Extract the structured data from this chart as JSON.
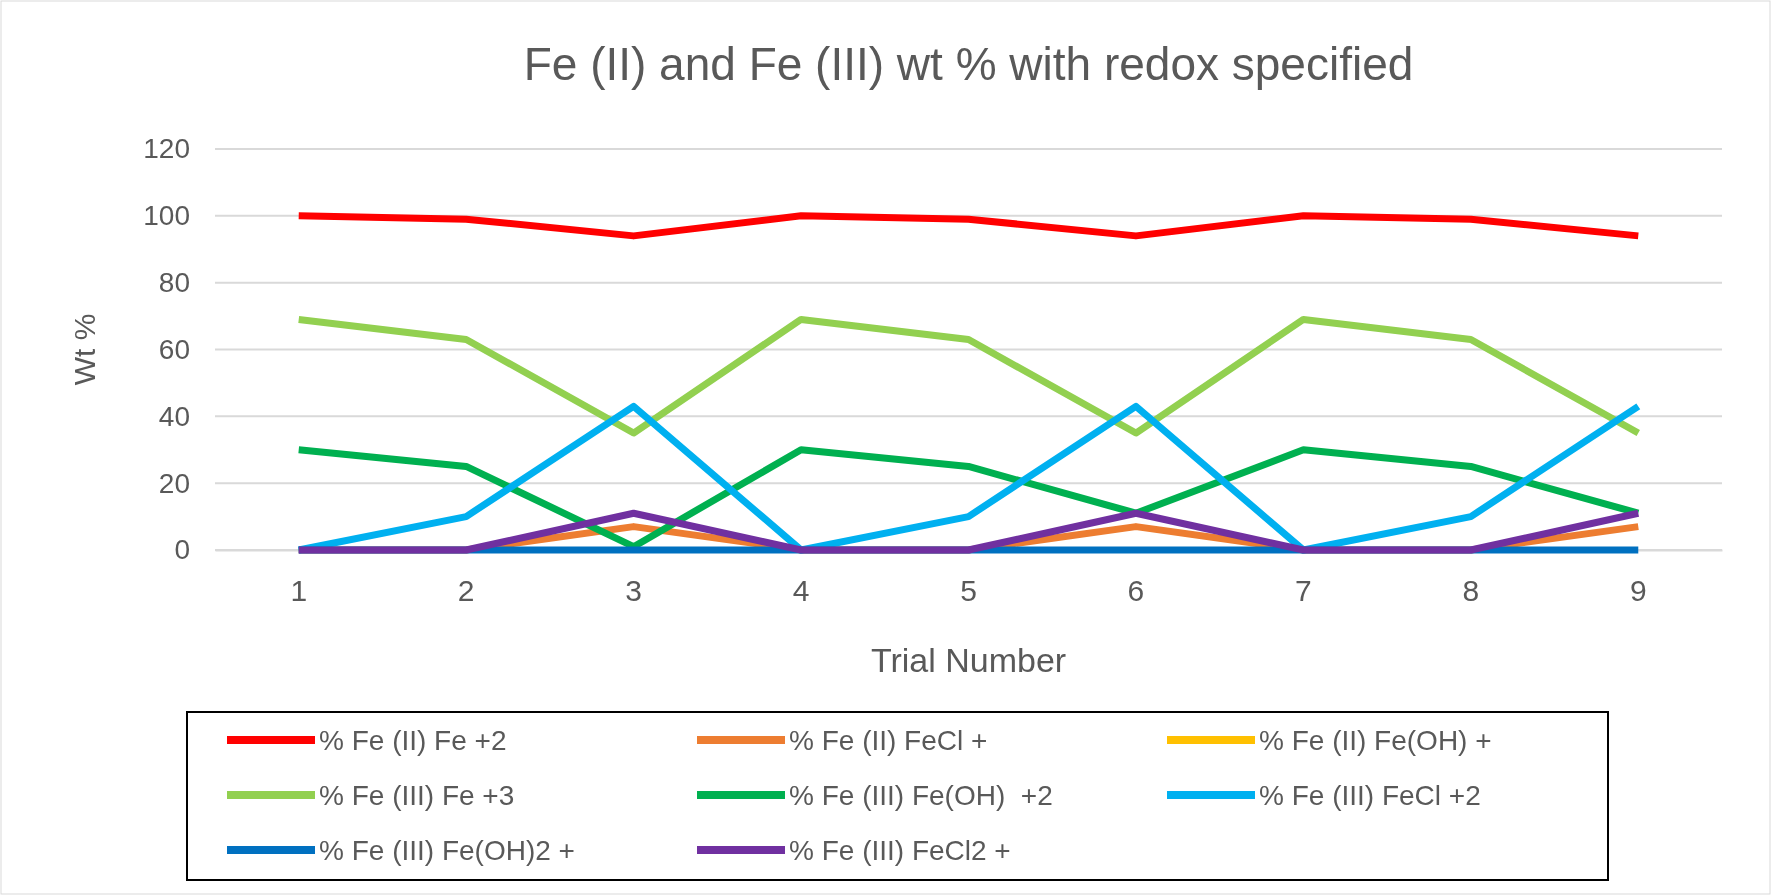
{
  "chart_data": {
    "type": "line",
    "title": "Fe (II) and Fe (III) wt % with redox specified",
    "xlabel": "Trial Number",
    "ylabel": "Wt %",
    "categories": [
      "1",
      "2",
      "3",
      "4",
      "5",
      "6",
      "7",
      "8",
      "9"
    ],
    "ylim": [
      0,
      120
    ],
    "yticks": [
      0,
      20,
      40,
      60,
      80,
      100,
      120
    ],
    "grid": "y",
    "legend": "bottom",
    "marker": "none",
    "line_style": "solid",
    "series": [
      {
        "name": "% Fe (II) Fe +2",
        "color": "#ff0000",
        "values": [
          100,
          99,
          94,
          100,
          99,
          94,
          100,
          99,
          94
        ]
      },
      {
        "name": "% Fe (II) FeCl +",
        "color": "#ed7d31",
        "values": [
          0,
          0,
          7,
          0,
          0,
          7,
          0,
          0,
          7
        ]
      },
      {
        "name": "% Fe (II) Fe(OH) +",
        "color": "#ffc000",
        "values": [
          null,
          null,
          null,
          null,
          null,
          null,
          null,
          null,
          null
        ]
      },
      {
        "name": "% Fe (III) Fe +3",
        "color": "#92d050",
        "values": [
          69,
          63,
          35,
          69,
          63,
          35,
          69,
          63,
          35
        ]
      },
      {
        "name": "% Fe (III) Fe(OH)  +2",
        "color": "#00b050",
        "values": [
          30,
          25,
          1,
          30,
          25,
          11,
          30,
          25,
          11
        ]
      },
      {
        "name": "% Fe (III) FeCl +2",
        "color": "#00b0f0",
        "values": [
          0,
          10,
          43,
          0,
          10,
          43,
          0,
          10,
          43
        ]
      },
      {
        "name": "% Fe (III) Fe(OH)2 +",
        "color": "#0070c0",
        "values": [
          0,
          0,
          0,
          0,
          0,
          0,
          0,
          0,
          0
        ]
      },
      {
        "name": "% Fe (III) FeCl2 +",
        "color": "#7030a0",
        "values": [
          0,
          0,
          11,
          0,
          0,
          11,
          0,
          0,
          11
        ]
      }
    ]
  }
}
